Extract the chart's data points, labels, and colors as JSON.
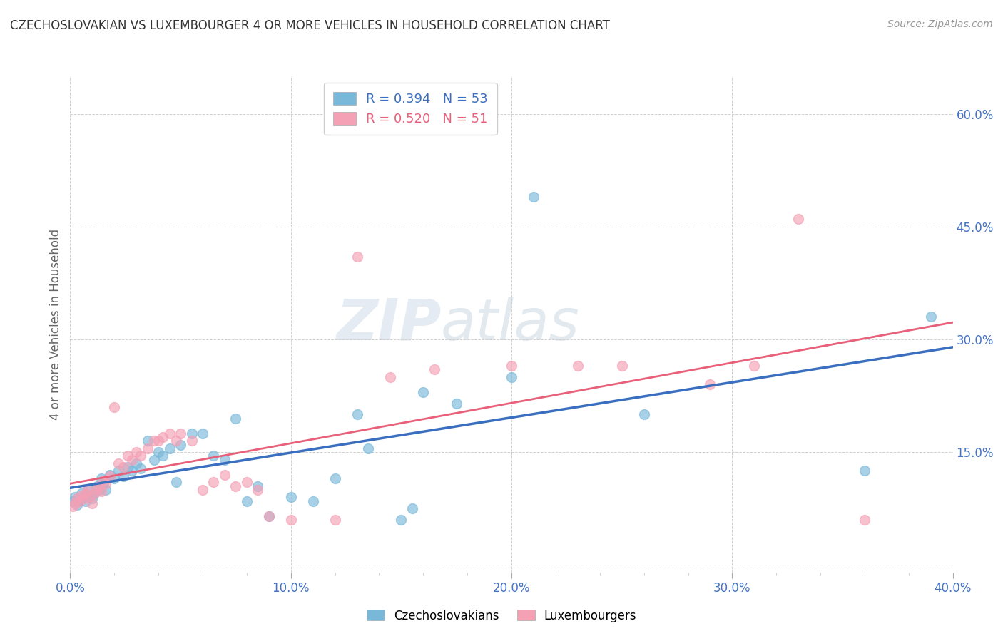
{
  "title": "CZECHOSLOVAKIAN VS LUXEMBOURGER 4 OR MORE VEHICLES IN HOUSEHOLD CORRELATION CHART",
  "source": "Source: ZipAtlas.com",
  "ylabel": "4 or more Vehicles in Household",
  "xlabel_ticks": [
    "0.0%",
    "",
    "",
    "",
    "",
    "10.0%",
    "",
    "",
    "",
    "",
    "20.0%",
    "",
    "",
    "",
    "",
    "30.0%",
    "",
    "",
    "",
    "",
    "40.0%"
  ],
  "ylabel_ticks_right": [
    "15.0%",
    "30.0%",
    "45.0%",
    "60.0%"
  ],
  "xlim": [
    0.0,
    0.4
  ],
  "ylim": [
    -0.01,
    0.65
  ],
  "watermark_zip": "ZIP",
  "watermark_atlas": "atlas",
  "blue_R": "0.394",
  "blue_N": "53",
  "pink_R": "0.520",
  "pink_N": "51",
  "blue_label": "Czechoslovakians",
  "pink_label": "Luxembourgers",
  "blue_color": "#7ab8d9",
  "pink_color": "#f4a0b5",
  "blue_line_color": "#3a6fbf",
  "pink_line_color": "#e8607a",
  "blue_scatter": [
    [
      0.001,
      0.085
    ],
    [
      0.002,
      0.09
    ],
    [
      0.003,
      0.08
    ],
    [
      0.004,
      0.085
    ],
    [
      0.005,
      0.095
    ],
    [
      0.006,
      0.09
    ],
    [
      0.007,
      0.085
    ],
    [
      0.008,
      0.1
    ],
    [
      0.009,
      0.092
    ],
    [
      0.01,
      0.088
    ],
    [
      0.011,
      0.095
    ],
    [
      0.012,
      0.105
    ],
    [
      0.013,
      0.1
    ],
    [
      0.014,
      0.115
    ],
    [
      0.015,
      0.108
    ],
    [
      0.016,
      0.1
    ],
    [
      0.018,
      0.12
    ],
    [
      0.02,
      0.115
    ],
    [
      0.022,
      0.125
    ],
    [
      0.024,
      0.118
    ],
    [
      0.026,
      0.13
    ],
    [
      0.028,
      0.125
    ],
    [
      0.03,
      0.135
    ],
    [
      0.032,
      0.128
    ],
    [
      0.035,
      0.165
    ],
    [
      0.038,
      0.14
    ],
    [
      0.04,
      0.15
    ],
    [
      0.042,
      0.145
    ],
    [
      0.045,
      0.155
    ],
    [
      0.048,
      0.11
    ],
    [
      0.05,
      0.16
    ],
    [
      0.055,
      0.175
    ],
    [
      0.06,
      0.175
    ],
    [
      0.065,
      0.145
    ],
    [
      0.07,
      0.14
    ],
    [
      0.075,
      0.195
    ],
    [
      0.08,
      0.085
    ],
    [
      0.085,
      0.105
    ],
    [
      0.09,
      0.065
    ],
    [
      0.1,
      0.09
    ],
    [
      0.11,
      0.085
    ],
    [
      0.12,
      0.115
    ],
    [
      0.13,
      0.2
    ],
    [
      0.135,
      0.155
    ],
    [
      0.15,
      0.06
    ],
    [
      0.155,
      0.075
    ],
    [
      0.16,
      0.23
    ],
    [
      0.175,
      0.215
    ],
    [
      0.2,
      0.25
    ],
    [
      0.21,
      0.49
    ],
    [
      0.26,
      0.2
    ],
    [
      0.36,
      0.125
    ],
    [
      0.39,
      0.33
    ]
  ],
  "pink_scatter": [
    [
      0.001,
      0.078
    ],
    [
      0.002,
      0.082
    ],
    [
      0.003,
      0.088
    ],
    [
      0.004,
      0.085
    ],
    [
      0.005,
      0.092
    ],
    [
      0.006,
      0.088
    ],
    [
      0.007,
      0.095
    ],
    [
      0.008,
      0.1
    ],
    [
      0.009,
      0.09
    ],
    [
      0.01,
      0.082
    ],
    [
      0.011,
      0.095
    ],
    [
      0.012,
      0.1
    ],
    [
      0.013,
      0.105
    ],
    [
      0.014,
      0.098
    ],
    [
      0.015,
      0.112
    ],
    [
      0.016,
      0.108
    ],
    [
      0.018,
      0.118
    ],
    [
      0.02,
      0.21
    ],
    [
      0.022,
      0.135
    ],
    [
      0.024,
      0.13
    ],
    [
      0.026,
      0.145
    ],
    [
      0.028,
      0.14
    ],
    [
      0.03,
      0.15
    ],
    [
      0.032,
      0.145
    ],
    [
      0.035,
      0.155
    ],
    [
      0.038,
      0.165
    ],
    [
      0.04,
      0.165
    ],
    [
      0.042,
      0.17
    ],
    [
      0.045,
      0.175
    ],
    [
      0.048,
      0.165
    ],
    [
      0.05,
      0.175
    ],
    [
      0.055,
      0.165
    ],
    [
      0.06,
      0.1
    ],
    [
      0.065,
      0.11
    ],
    [
      0.07,
      0.12
    ],
    [
      0.075,
      0.105
    ],
    [
      0.08,
      0.11
    ],
    [
      0.085,
      0.1
    ],
    [
      0.09,
      0.065
    ],
    [
      0.1,
      0.06
    ],
    [
      0.12,
      0.06
    ],
    [
      0.13,
      0.41
    ],
    [
      0.145,
      0.25
    ],
    [
      0.165,
      0.26
    ],
    [
      0.2,
      0.265
    ],
    [
      0.23,
      0.265
    ],
    [
      0.25,
      0.265
    ],
    [
      0.29,
      0.24
    ],
    [
      0.31,
      0.265
    ],
    [
      0.33,
      0.46
    ],
    [
      0.36,
      0.06
    ]
  ],
  "background_color": "#ffffff",
  "grid_color": "#d0d0d0"
}
